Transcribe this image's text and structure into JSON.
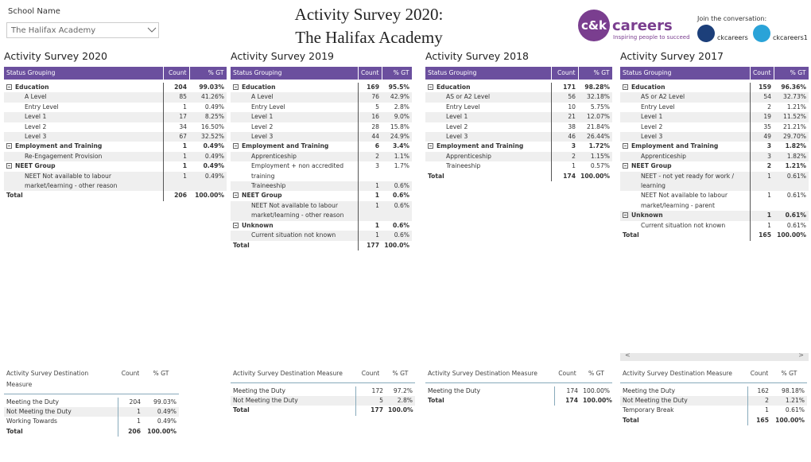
{
  "filter": {
    "label": "School Name",
    "value": "The Halifax Academy"
  },
  "title": {
    "line1": "Activity Survey 2020:",
    "line2": "The Halifax Academy"
  },
  "branding": {
    "logo_mark": "c&k",
    "logo_word": "careers",
    "tagline": "Inspiring people to succeed",
    "social_heading": "Join the conversation:",
    "facebook": "ckcareers",
    "twitter": "ckcareers1"
  },
  "matrices": [
    {
      "title": "Activity Survey 2020",
      "headers": [
        "Status Grouping",
        "Count",
        "% GT"
      ],
      "rows": [
        {
          "label": "Education",
          "count": "204",
          "pct": "99.03%",
          "kind": "group"
        },
        {
          "label": "A Level",
          "count": "85",
          "pct": "41.26%",
          "kind": "item"
        },
        {
          "label": "Entry Level",
          "count": "1",
          "pct": "0.49%",
          "kind": "item"
        },
        {
          "label": "Level 1",
          "count": "17",
          "pct": "8.25%",
          "kind": "item"
        },
        {
          "label": "Level 2",
          "count": "34",
          "pct": "16.50%",
          "kind": "item"
        },
        {
          "label": "Level 3",
          "count": "67",
          "pct": "32.52%",
          "kind": "item"
        },
        {
          "label": "Employment and Training",
          "count": "1",
          "pct": "0.49%",
          "kind": "group"
        },
        {
          "label": "Re-Engagement Provision",
          "count": "1",
          "pct": "0.49%",
          "kind": "item"
        },
        {
          "label": "NEET Group",
          "count": "1",
          "pct": "0.49%",
          "kind": "group"
        },
        {
          "label": "NEET Not available to labour market/learning - other reason",
          "count": "1",
          "pct": "0.49%",
          "kind": "item"
        },
        {
          "label": "Total",
          "count": "206",
          "pct": "100.00%",
          "kind": "total"
        }
      ]
    },
    {
      "title": "Activity Survey 2019",
      "headers": [
        "Status Grouping",
        "Count",
        "% GT"
      ],
      "rows": [
        {
          "label": "Education",
          "count": "169",
          "pct": "95.5%",
          "kind": "group"
        },
        {
          "label": "A Level",
          "count": "76",
          "pct": "42.9%",
          "kind": "item"
        },
        {
          "label": "Entry Level",
          "count": "5",
          "pct": "2.8%",
          "kind": "item"
        },
        {
          "label": "Level 1",
          "count": "16",
          "pct": "9.0%",
          "kind": "item"
        },
        {
          "label": "Level 2",
          "count": "28",
          "pct": "15.8%",
          "kind": "item"
        },
        {
          "label": "Level 3",
          "count": "44",
          "pct": "24.9%",
          "kind": "item"
        },
        {
          "label": "Employment and Training",
          "count": "6",
          "pct": "3.4%",
          "kind": "group"
        },
        {
          "label": "Apprenticeship",
          "count": "2",
          "pct": "1.1%",
          "kind": "item"
        },
        {
          "label": "Employment + non accredited training",
          "count": "3",
          "pct": "1.7%",
          "kind": "item"
        },
        {
          "label": "Traineeship",
          "count": "1",
          "pct": "0.6%",
          "kind": "item"
        },
        {
          "label": "NEET Group",
          "count": "1",
          "pct": "0.6%",
          "kind": "group"
        },
        {
          "label": "NEET Not available to labour market/learning - other reason",
          "count": "1",
          "pct": "0.6%",
          "kind": "item"
        },
        {
          "label": "Unknown",
          "count": "1",
          "pct": "0.6%",
          "kind": "group"
        },
        {
          "label": "Current situation not known",
          "count": "1",
          "pct": "0.6%",
          "kind": "item"
        },
        {
          "label": "Total",
          "count": "177",
          "pct": "100.0%",
          "kind": "total"
        }
      ]
    },
    {
      "title": "Activity Survey 2018",
      "headers": [
        "Status Grouping",
        "Count",
        "% GT"
      ],
      "rows": [
        {
          "label": "Education",
          "count": "171",
          "pct": "98.28%",
          "kind": "group"
        },
        {
          "label": "AS or A2 Level",
          "count": "56",
          "pct": "32.18%",
          "kind": "item"
        },
        {
          "label": "Entry Level",
          "count": "10",
          "pct": "5.75%",
          "kind": "item"
        },
        {
          "label": "Level 1",
          "count": "21",
          "pct": "12.07%",
          "kind": "item"
        },
        {
          "label": "Level 2",
          "count": "38",
          "pct": "21.84%",
          "kind": "item"
        },
        {
          "label": "Level 3",
          "count": "46",
          "pct": "26.44%",
          "kind": "item"
        },
        {
          "label": "Employment and Training",
          "count": "3",
          "pct": "1.72%",
          "kind": "group"
        },
        {
          "label": "Apprenticeship",
          "count": "2",
          "pct": "1.15%",
          "kind": "item"
        },
        {
          "label": "Traineeship",
          "count": "1",
          "pct": "0.57%",
          "kind": "item"
        },
        {
          "label": "Total",
          "count": "174",
          "pct": "100.00%",
          "kind": "total"
        }
      ]
    },
    {
      "title": "Activity Survey 2017",
      "headers": [
        "Status Grouping",
        "Count",
        "% GT"
      ],
      "rows": [
        {
          "label": "Education",
          "count": "159",
          "pct": "96.36%",
          "kind": "group"
        },
        {
          "label": "AS or A2 Level",
          "count": "54",
          "pct": "32.73%",
          "kind": "item"
        },
        {
          "label": "Entry Level",
          "count": "2",
          "pct": "1.21%",
          "kind": "item"
        },
        {
          "label": "Level 1",
          "count": "19",
          "pct": "11.52%",
          "kind": "item"
        },
        {
          "label": "Level 2",
          "count": "35",
          "pct": "21.21%",
          "kind": "item"
        },
        {
          "label": "Level 3",
          "count": "49",
          "pct": "29.70%",
          "kind": "item"
        },
        {
          "label": "Employment and Training",
          "count": "3",
          "pct": "1.82%",
          "kind": "group"
        },
        {
          "label": "Apprenticeship",
          "count": "3",
          "pct": "1.82%",
          "kind": "item"
        },
        {
          "label": "NEET Group",
          "count": "2",
          "pct": "1.21%",
          "kind": "group"
        },
        {
          "label": "NEET - not yet ready for work / learning",
          "count": "1",
          "pct": "0.61%",
          "kind": "item"
        },
        {
          "label": "NEET Not available to labour market/learning - parent",
          "count": "1",
          "pct": "0.61%",
          "kind": "item"
        },
        {
          "label": "Unknown",
          "count": "1",
          "pct": "0.61%",
          "kind": "group"
        },
        {
          "label": "Current situation not known",
          "count": "1",
          "pct": "0.61%",
          "kind": "item"
        },
        {
          "label": "Total",
          "count": "165",
          "pct": "100.00%",
          "kind": "total"
        }
      ]
    }
  ],
  "destinations": [
    {
      "headers": [
        "Activity Survey Destination Measure",
        "Count",
        "% GT"
      ],
      "rows": [
        [
          "Meeting the Duty",
          "204",
          "99.03%"
        ],
        [
          "Not Meeting the Duty",
          "1",
          "0.49%"
        ],
        [
          "Working Towards",
          "1",
          "0.49%"
        ]
      ],
      "total": [
        "Total",
        "206",
        "100.00%"
      ]
    },
    {
      "headers": [
        "Activity Survey Destination Measure",
        "Count",
        "% GT"
      ],
      "rows": [
        [
          "Meeting the Duty",
          "172",
          "97.2%"
        ],
        [
          "Not Meeting the Duty",
          "5",
          "2.8%"
        ]
      ],
      "total": [
        "Total",
        "177",
        "100.0%"
      ]
    },
    {
      "headers": [
        "Activity Survey Destination Measure",
        "Count",
        "% GT"
      ],
      "rows": [
        [
          "Meeting the Duty",
          "174",
          "100.00%"
        ]
      ],
      "total": [
        "Total",
        "174",
        "100.00%"
      ]
    },
    {
      "headers": [
        "Activity Survey Destination Measure",
        "Count",
        "% GT"
      ],
      "rows": [
        [
          "Meeting the Duty",
          "162",
          "98.18%"
        ],
        [
          "Not Meeting the Duty",
          "2",
          "1.21%"
        ],
        [
          "Temporary Break",
          "1",
          "0.61%"
        ]
      ],
      "total": [
        "Total",
        "165",
        "100.00%"
      ]
    }
  ]
}
